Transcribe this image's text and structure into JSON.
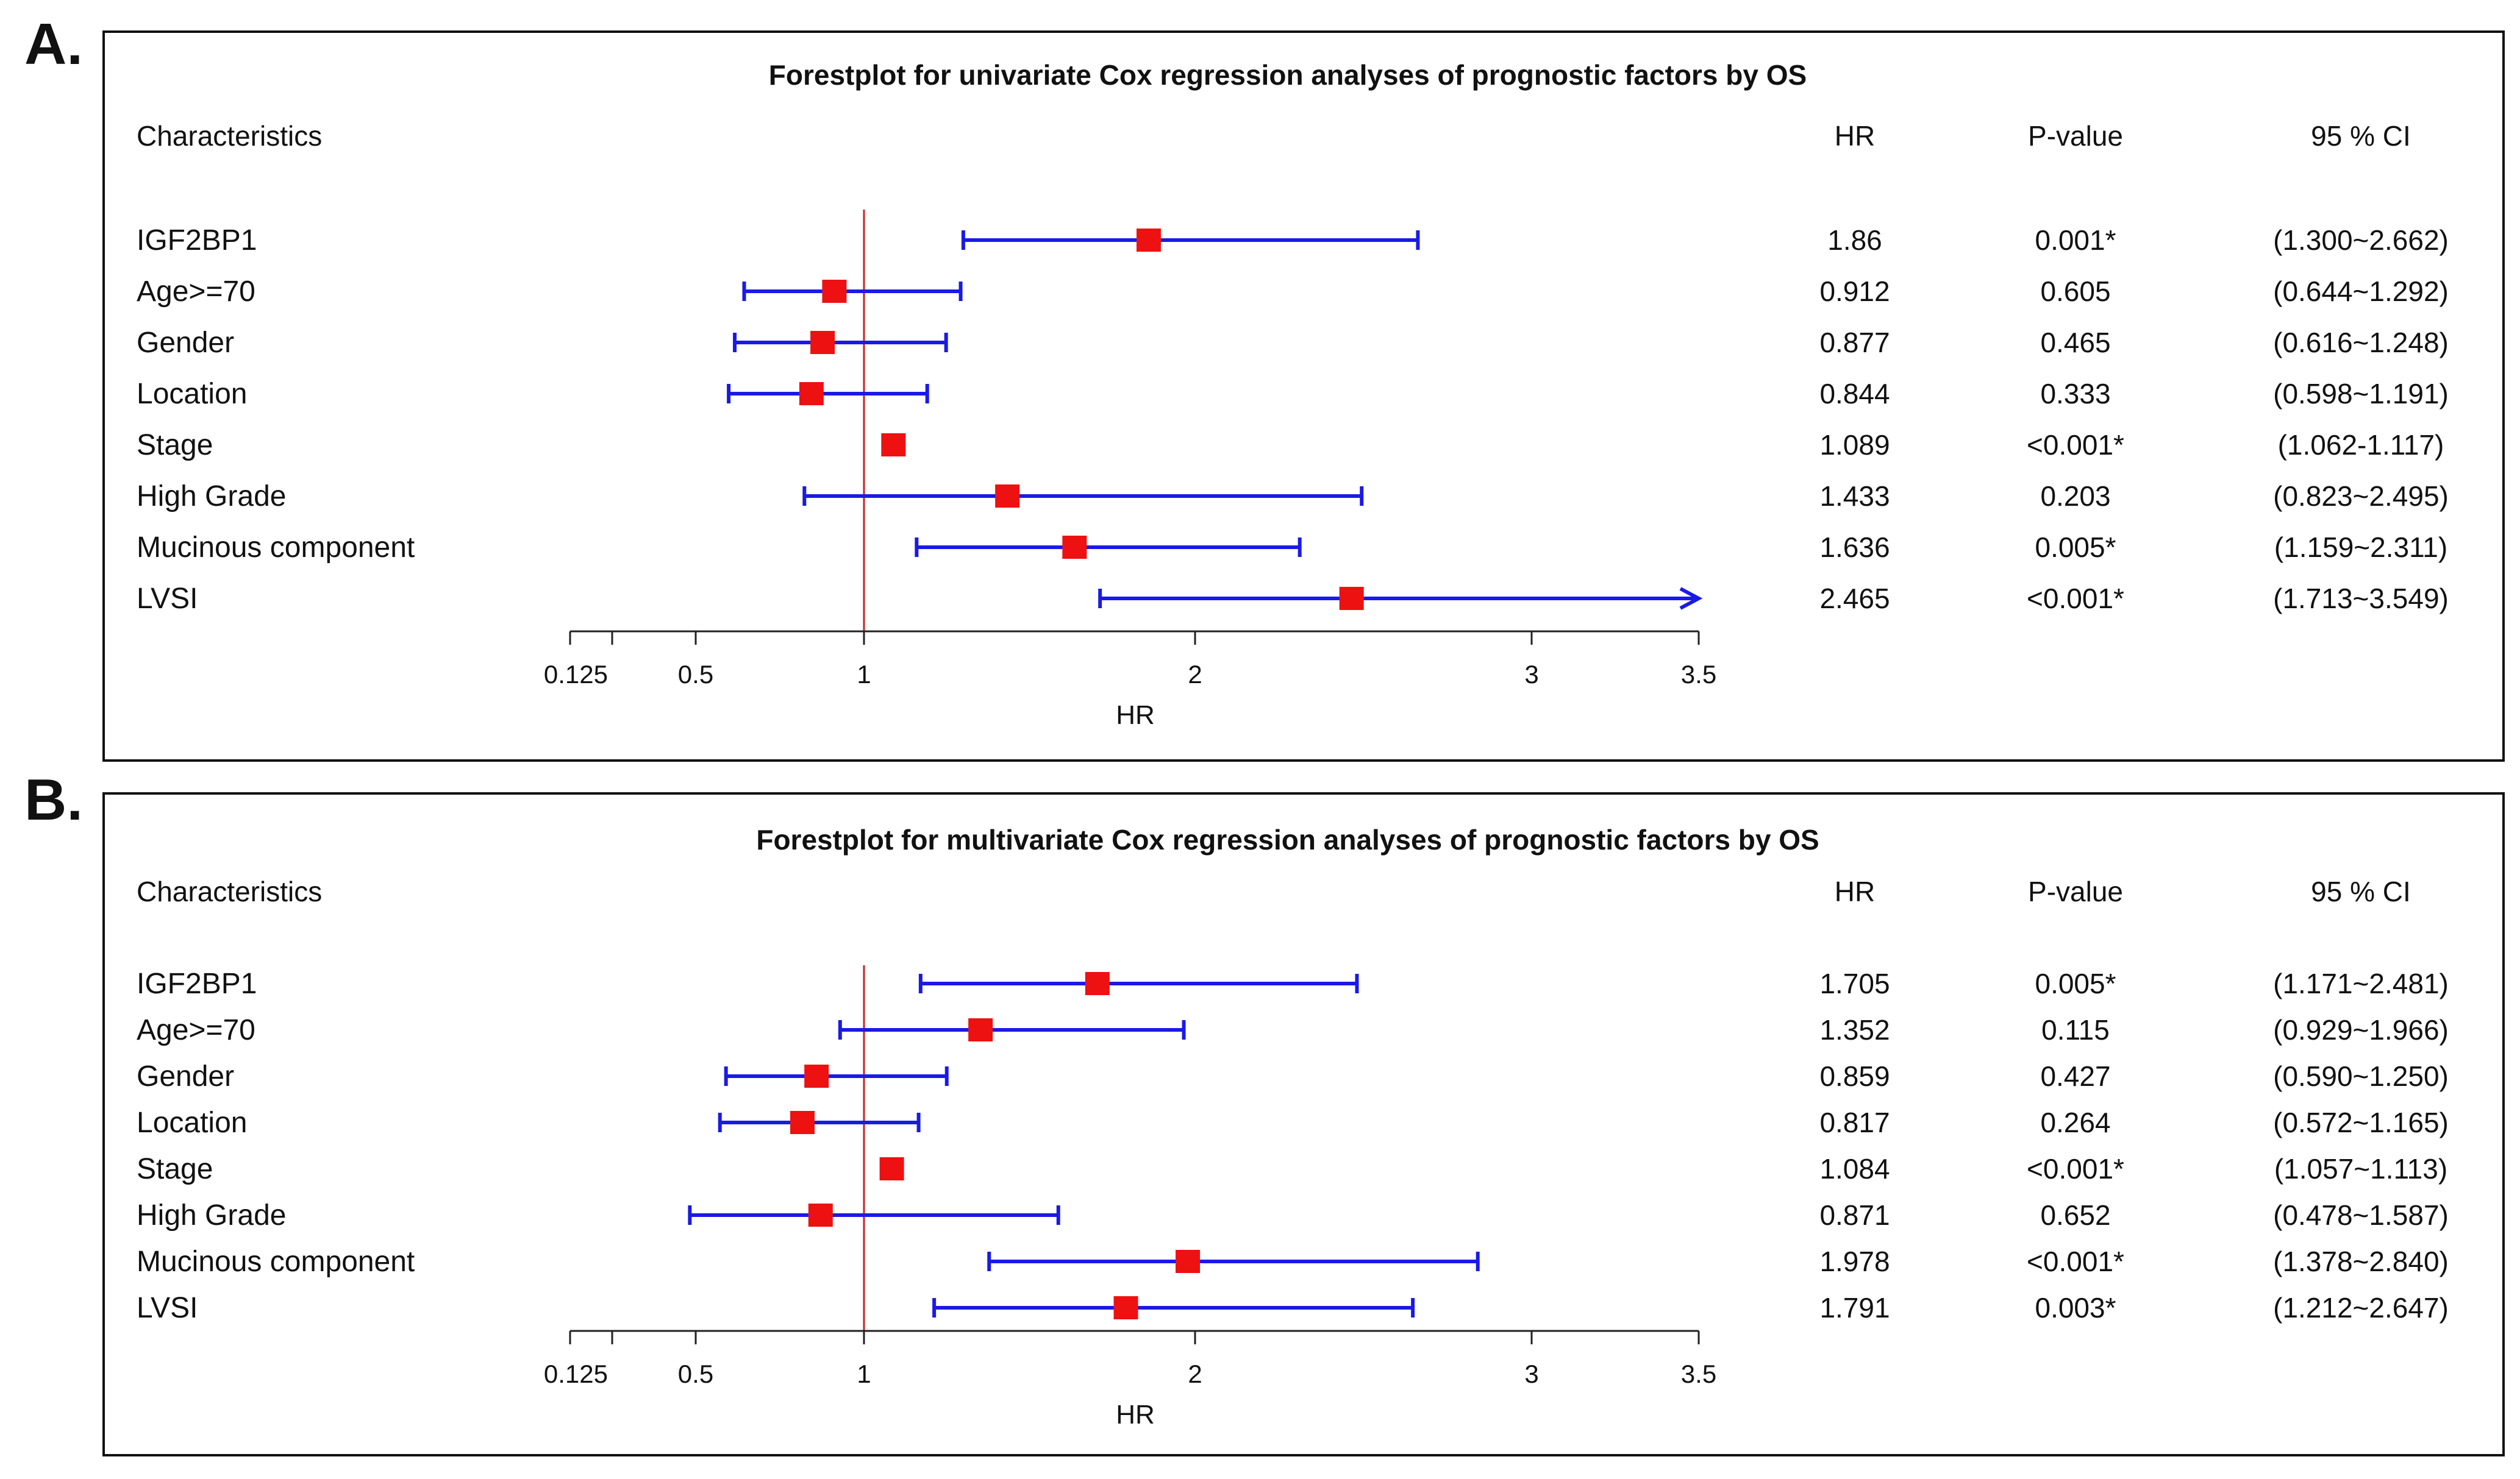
{
  "panels": [
    {
      "label": "A.",
      "title": "Forestplot for univariate Cox regression analyses of prognostic factors by OS",
      "columns": {
        "characteristics": "Characteristics",
        "hr": "HR",
        "pvalue": "P-value",
        "ci": "95 % CI"
      },
      "axis_label": "HR"
    },
    {
      "label": "B.",
      "title": "Forestplot for multivariate Cox regression analyses of prognostic factors by OS",
      "columns": {
        "characteristics": "Characteristics",
        "hr": "HR",
        "pvalue": "P-value",
        "ci": "95 % CI"
      },
      "axis_label": "HR"
    }
  ],
  "colors": {
    "box": "#ee1111",
    "whisker": "#1a1ae6",
    "refline": "#cc2222",
    "text": "#111111"
  },
  "chart_data": [
    {
      "type": "forest",
      "title": "Forestplot for univariate Cox regression analyses of prognostic factors by OS",
      "xlabel": "HR",
      "reference_line": 1,
      "xlim": [
        0.125,
        3.5
      ],
      "tick_labels": [
        "0.125",
        "0.5",
        "1",
        "2",
        "3",
        "3.5"
      ],
      "rows": [
        {
          "name": "IGF2BP1",
          "hr": 1.86,
          "lo": 1.3,
          "hi": 2.662,
          "hr_text": "1.86",
          "p": "0.001*",
          "ci": "(1.300~2.662)",
          "arrow": false
        },
        {
          "name": "Age>=70",
          "hr": 0.912,
          "lo": 0.644,
          "hi": 1.292,
          "hr_text": "0.912",
          "p": "0.605",
          "ci": "(0.644~1.292)",
          "arrow": false
        },
        {
          "name": "Gender",
          "hr": 0.877,
          "lo": 0.616,
          "hi": 1.248,
          "hr_text": "0.877",
          "p": "0.465",
          "ci": "(0.616~1.248)",
          "arrow": false
        },
        {
          "name": "Location",
          "hr": 0.844,
          "lo": 0.598,
          "hi": 1.191,
          "hr_text": "0.844",
          "p": "0.333",
          "ci": "(0.598~1.191)",
          "arrow": false
        },
        {
          "name": "Stage",
          "hr": 1.089,
          "lo": 1.062,
          "hi": 1.117,
          "hr_text": "1.089",
          "p": "<0.001*",
          "ci": "(1.062-1.117)",
          "arrow": false
        },
        {
          "name": "High Grade",
          "hr": 1.433,
          "lo": 0.823,
          "hi": 2.495,
          "hr_text": "1.433",
          "p": "0.203",
          "ci": "(0.823~2.495)",
          "arrow": false
        },
        {
          "name": "Mucinous component",
          "hr": 1.636,
          "lo": 1.159,
          "hi": 2.311,
          "hr_text": "1.636",
          "p": "0.005*",
          "ci": "(1.159~2.311)",
          "arrow": false
        },
        {
          "name": "LVSI",
          "hr": 2.465,
          "lo": 1.713,
          "hi": 3.549,
          "hr_text": "2.465",
          "p": "<0.001*",
          "ci": "(1.713~3.549)",
          "arrow": true
        }
      ]
    },
    {
      "type": "forest",
      "title": "Forestplot for multivariate Cox regression analyses of prognostic factors by OS",
      "xlabel": "HR",
      "reference_line": 1,
      "xlim": [
        0.125,
        3.5
      ],
      "tick_labels": [
        "0.125",
        "0.5",
        "1",
        "2",
        "3",
        "3.5"
      ],
      "rows": [
        {
          "name": "IGF2BP1",
          "hr": 1.705,
          "lo": 1.171,
          "hi": 2.481,
          "hr_text": "1.705",
          "p": "0.005*",
          "ci": "(1.171~2.481)",
          "arrow": false
        },
        {
          "name": "Age>=70",
          "hr": 1.352,
          "lo": 0.929,
          "hi": 1.966,
          "hr_text": "1.352",
          "p": "0.115",
          "ci": "(0.929~1.966)",
          "arrow": false
        },
        {
          "name": "Gender",
          "hr": 0.859,
          "lo": 0.59,
          "hi": 1.25,
          "hr_text": "0.859",
          "p": "0.427",
          "ci": "(0.590~1.250)",
          "arrow": false
        },
        {
          "name": "Location",
          "hr": 0.817,
          "lo": 0.572,
          "hi": 1.165,
          "hr_text": "0.817",
          "p": "0.264",
          "ci": "(0.572~1.165)",
          "arrow": false
        },
        {
          "name": "Stage",
          "hr": 1.084,
          "lo": 1.057,
          "hi": 1.113,
          "hr_text": "1.084",
          "p": "<0.001*",
          "ci": "(1.057~1.113)",
          "arrow": false
        },
        {
          "name": "High Grade",
          "hr": 0.871,
          "lo": 0.478,
          "hi": 1.587,
          "hr_text": "0.871",
          "p": "0.652",
          "ci": "(0.478~1.587)",
          "arrow": false
        },
        {
          "name": "Mucinous component",
          "hr": 1.978,
          "lo": 1.378,
          "hi": 2.84,
          "hr_text": "1.978",
          "p": "<0.001*",
          "ci": "(1.378~2.840)",
          "arrow": false
        },
        {
          "name": "LVSI",
          "hr": 1.791,
          "lo": 1.212,
          "hi": 2.647,
          "hr_text": "1.791",
          "p": "0.003*",
          "ci": "(1.212~2.647)",
          "arrow": false
        }
      ]
    }
  ]
}
